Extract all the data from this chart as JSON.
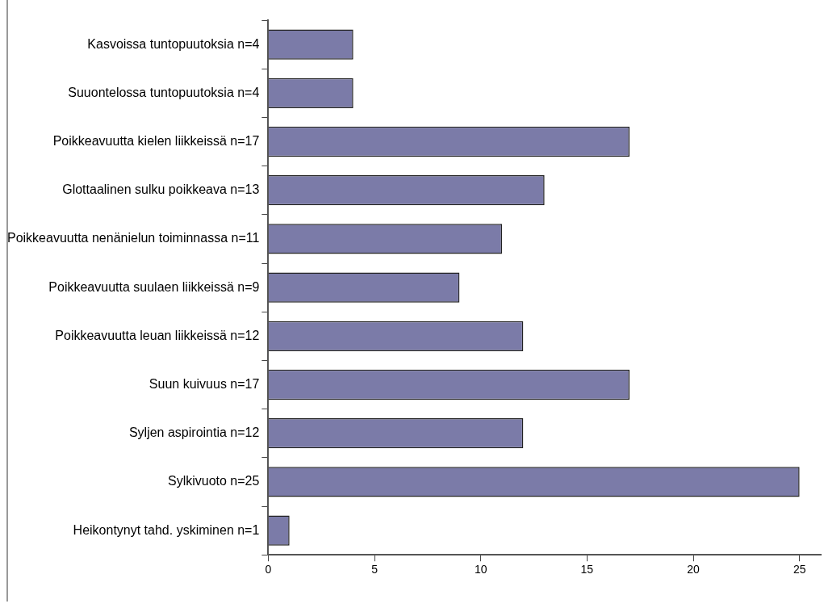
{
  "chart_data": {
    "type": "bar",
    "orientation": "horizontal",
    "categories": [
      "Kasvoissa tuntopuutoksia n=4",
      "Suuontelossa tuntopuutoksia n=4",
      "Poikkeavuutta kielen liikkeissä n=17",
      "Glottaalinen sulku poikkeava n=13",
      "Poikkeavuutta nenänielun toiminnassa n=11",
      "Poikkeavuutta suulaen liikkeissä n=9",
      "Poikkeavuutta leuan liikkeissä n=12",
      "Suun kuivuus n=17",
      "Syljen aspirointia n=12",
      "Sylkivuoto n=25",
      "Heikontynyt tahd. yskiminen n=1"
    ],
    "values": [
      4,
      4,
      17,
      13,
      11,
      9,
      12,
      17,
      12,
      25,
      1
    ],
    "color": "#7b7ba8",
    "xlim": [
      0,
      26
    ],
    "xticks": [
      0,
      5,
      10,
      15,
      20,
      25
    ],
    "grid": false
  }
}
